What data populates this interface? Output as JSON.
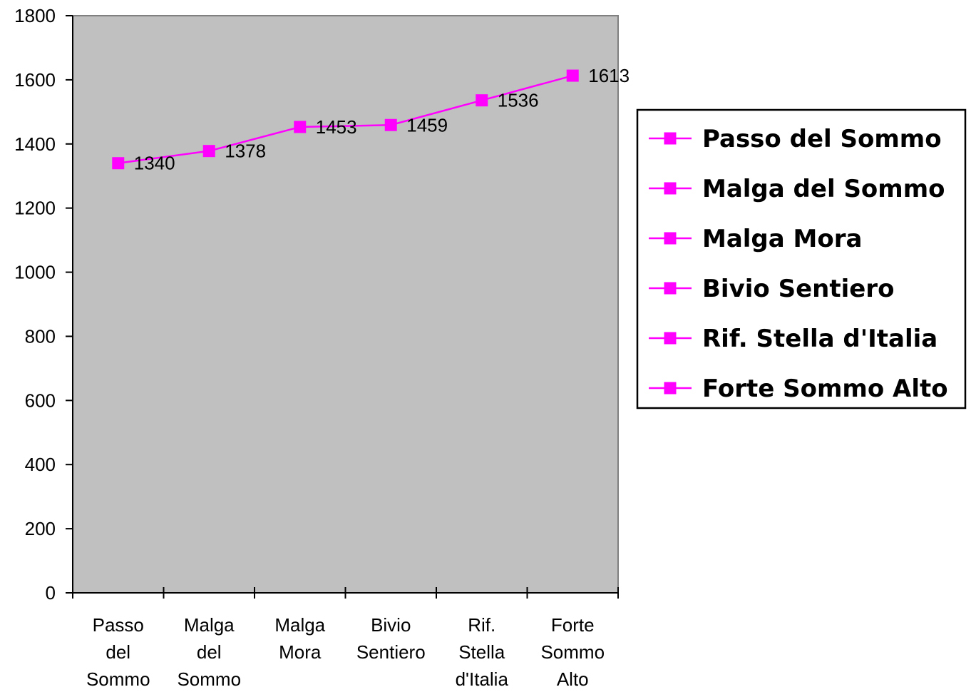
{
  "chart_data": {
    "type": "line",
    "categories": [
      "Passo del Sommo",
      "Malga del Sommo",
      "Malga Mora",
      "Bivio Sentiero",
      "Rif. Stella d'Italia",
      "Forte Sommo Alto"
    ],
    "category_label_lines": [
      [
        "Passo",
        "del",
        "Sommo"
      ],
      [
        "Malga",
        "del",
        "Sommo"
      ],
      [
        "Malga",
        "Mora"
      ],
      [
        "Bivio",
        "Sentiero"
      ],
      [
        "Rif.",
        "Stella",
        "d'Italia"
      ],
      [
        "Forte",
        "Sommo",
        "Alto"
      ]
    ],
    "values": [
      1340,
      1378,
      1453,
      1459,
      1536,
      1613
    ],
    "data_labels": [
      "1340",
      "1378",
      "1453",
      "1459",
      "1536",
      "1613"
    ],
    "ylim": [
      0,
      1800
    ],
    "y_ticks": [
      0,
      200,
      400,
      600,
      800,
      1000,
      1200,
      1400,
      1600,
      1800
    ],
    "y_tick_labels": [
      "0",
      "200",
      "400",
      "600",
      "800",
      "1000",
      "1200",
      "1400",
      "1600",
      "1800"
    ],
    "legend_entries": [
      "Passo del Sommo",
      "Malga del Sommo",
      "Malga Mora",
      "Bivio Sentiero",
      "Rif. Stella d'Italia",
      "Forte Sommo Alto"
    ],
    "legend_position": "right",
    "grid": false,
    "colors": {
      "line": "#ff00ff",
      "marker": "#ff00ff",
      "plot_background": "#c0c0c0",
      "plot_border": "#808080",
      "axis": "#000000"
    }
  }
}
